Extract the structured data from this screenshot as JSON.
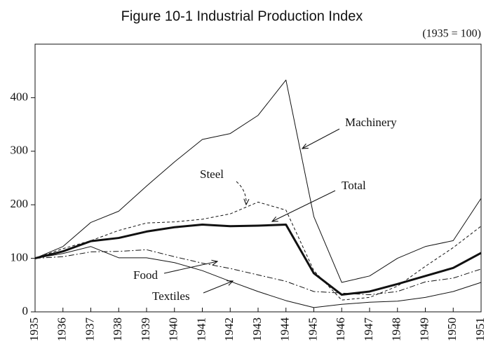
{
  "chart_data": {
    "type": "line",
    "title": "Figure 10-1  Industrial Production Index",
    "subtitle": "(1935 = 100)",
    "x": [
      1935,
      1936,
      1937,
      1938,
      1939,
      1940,
      1941,
      1942,
      1943,
      1944,
      1945,
      1946,
      1947,
      1948,
      1949,
      1950,
      1951
    ],
    "xlim": [
      1935,
      1951
    ],
    "xticks": [
      1935,
      1936,
      1937,
      1938,
      1939,
      1940,
      1941,
      1942,
      1943,
      1944,
      1945,
      1946,
      1947,
      1948,
      1949,
      1950,
      1951
    ],
    "ylim": [
      0,
      500
    ],
    "yticks": [
      0,
      100,
      200,
      300,
      400
    ],
    "series": [
      {
        "name": "Machinery",
        "color": "#111111",
        "linestyle": "solid",
        "linewidth": 1,
        "values": [
          100,
          122,
          167,
          188,
          235,
          280,
          322,
          333,
          367,
          433,
          178,
          55,
          67,
          100,
          122,
          133,
          212
        ]
      },
      {
        "name": "Steel",
        "color": "#111111",
        "linestyle": "dashed",
        "linewidth": 1,
        "values": [
          100,
          118,
          133,
          152,
          166,
          168,
          173,
          183,
          205,
          190,
          77,
          22,
          27,
          48,
          85,
          120,
          160
        ]
      },
      {
        "name": "Total",
        "color": "#111111",
        "linestyle": "solid",
        "linewidth": 3,
        "values": [
          100,
          113,
          132,
          138,
          150,
          158,
          163,
          160,
          161,
          163,
          72,
          32,
          38,
          52,
          67,
          82,
          110
        ]
      },
      {
        "name": "Food",
        "color": "#111111",
        "linestyle": "dashdot",
        "linewidth": 1,
        "values": [
          100,
          103,
          112,
          113,
          116,
          103,
          91,
          81,
          69,
          57,
          38,
          35,
          32,
          38,
          56,
          63,
          80
        ]
      },
      {
        "name": "Textiles",
        "color": "#111111",
        "linestyle": "solid",
        "linewidth": 1,
        "values": [
          100,
          109,
          122,
          101,
          101,
          92,
          77,
          57,
          38,
          21,
          8,
          14,
          18,
          20,
          27,
          38,
          55
        ]
      }
    ]
  }
}
